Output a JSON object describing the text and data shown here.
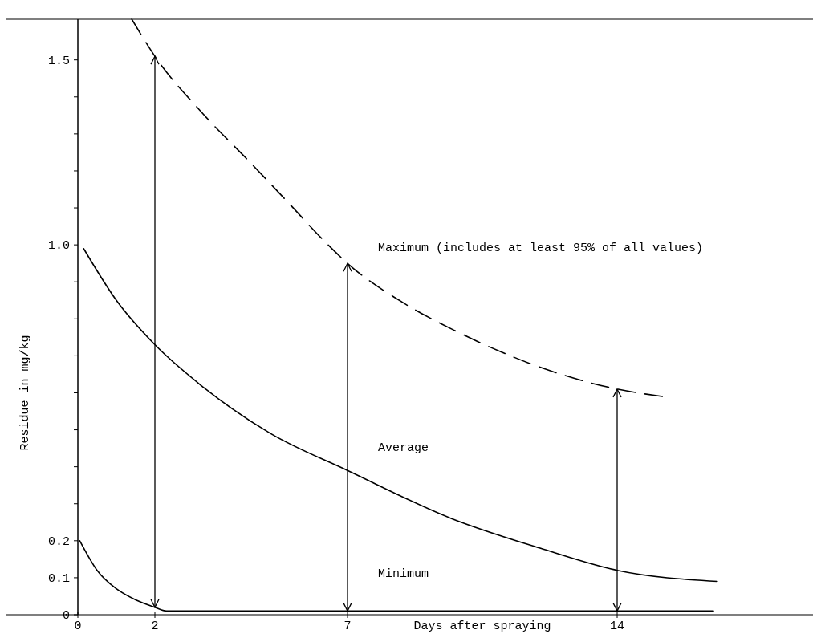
{
  "chart_data": {
    "type": "line",
    "xlabel": "Days after spraying",
    "ylabel": "Residue in mg/kg",
    "xlim": [
      0,
      19
    ],
    "ylim": [
      0,
      1.61
    ],
    "xticks": [
      0,
      2,
      7,
      14
    ],
    "yticks": [
      0,
      0.1,
      0.2,
      {
        "value": 0.3,
        "label": null
      },
      {
        "value": 0.4,
        "label": null
      },
      {
        "value": 0.5,
        "label": null
      },
      {
        "value": 0.6,
        "label": null
      },
      {
        "value": 0.7,
        "label": null
      },
      {
        "value": 0.8,
        "label": null
      },
      {
        "value": 0.9,
        "label": null
      },
      "1.0",
      {
        "value": 1.1,
        "label": null
      },
      {
        "value": 1.2,
        "label": null
      },
      {
        "value": 1.3,
        "label": null
      },
      {
        "value": 1.4,
        "label": null
      },
      1.5
    ],
    "series": [
      {
        "name": "Maximum (includes at least 95% of all values)",
        "color": "#000000",
        "line_style": "dashed",
        "x": [
          1.4,
          2,
          3.2,
          4.5,
          5.5,
          6.4,
          7,
          8.5,
          9.75,
          11,
          12.25,
          14,
          15.2
        ],
        "values": [
          1.61,
          1.51,
          1.36,
          1.22,
          1.11,
          1.01,
          0.95,
          0.84,
          0.77,
          0.71,
          0.66,
          0.61,
          0.59
        ]
      },
      {
        "name": "Average",
        "color": "#000000",
        "line_style": "solid",
        "x": [
          0.15,
          1,
          2,
          3.2,
          5,
          7,
          9.7,
          12,
          14,
          16.6
        ],
        "values": [
          0.99,
          0.85,
          0.73,
          0.62,
          0.49,
          0.39,
          0.26,
          0.18,
          0.12,
          0.09
        ]
      },
      {
        "name": "Minimum",
        "color": "#000000",
        "line_style": "solid",
        "x": [
          0.05,
          0.5,
          1,
          1.5,
          2,
          2.3,
          5,
          10,
          16.5
        ],
        "values": [
          0.2,
          0.12,
          0.07,
          0.04,
          0.02,
          0.01,
          0.01,
          0.01,
          0.01
        ]
      }
    ]
  }
}
